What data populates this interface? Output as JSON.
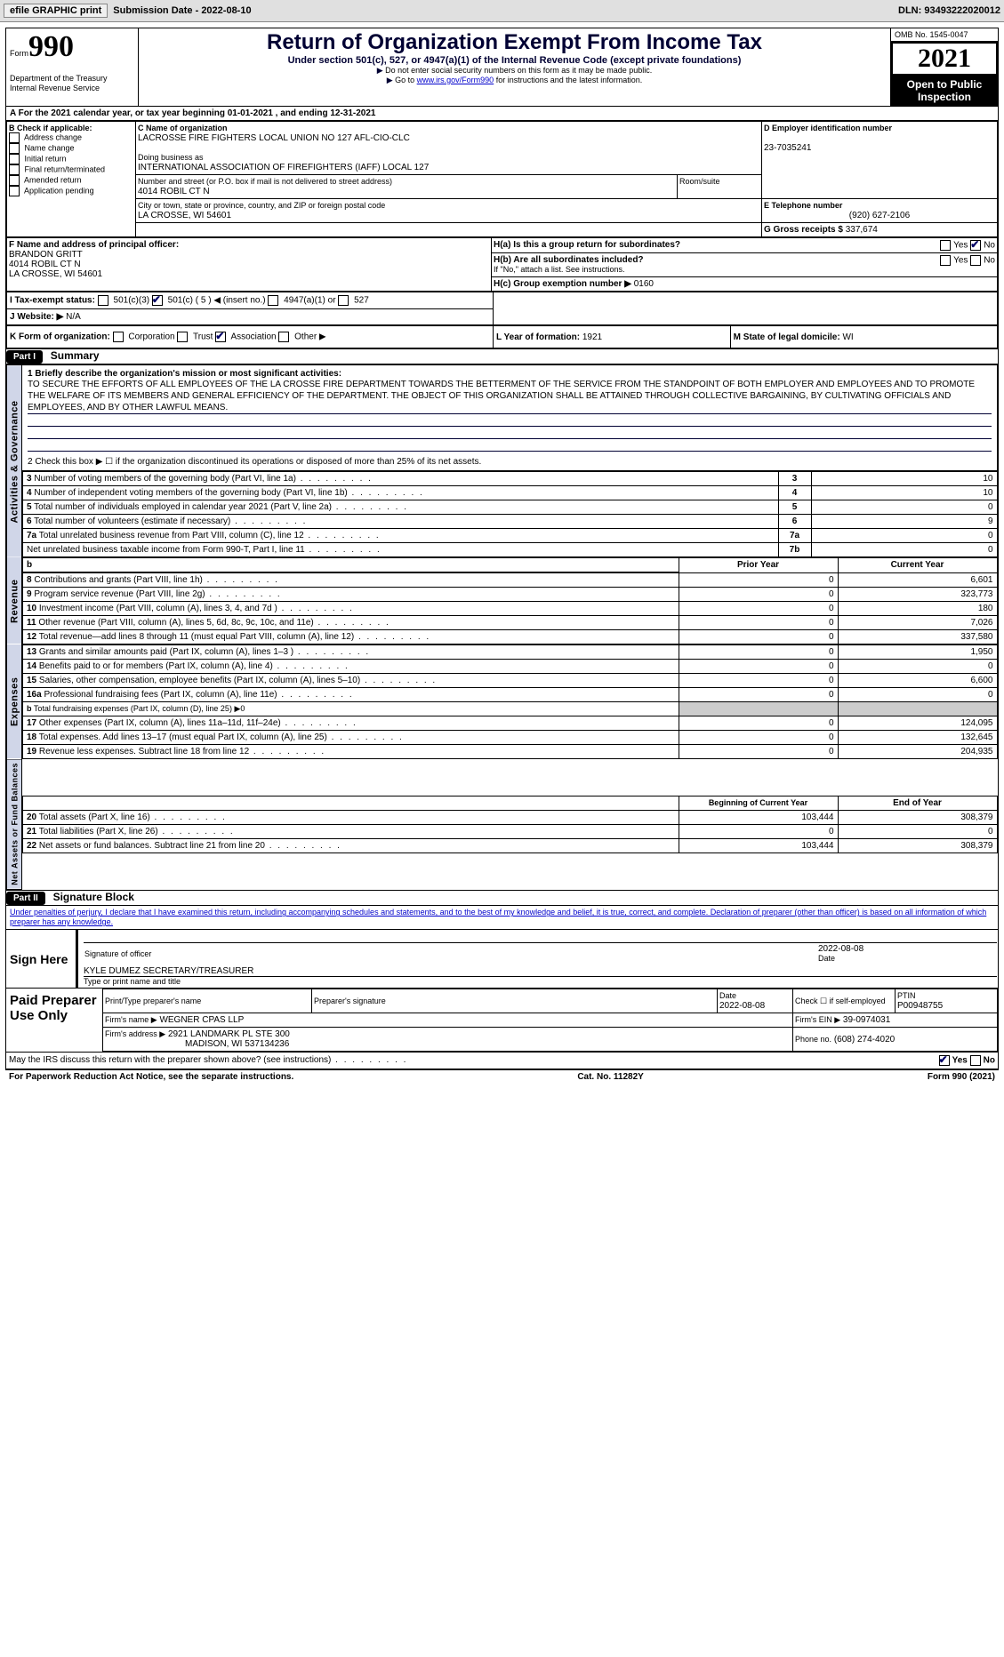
{
  "toolbar": {
    "efile_label": "efile GRAPHIC print",
    "submission_label": "Submission Date - 2022-08-10",
    "dln_label": "DLN: 93493222020012"
  },
  "header": {
    "form_word": "Form",
    "form_number": "990",
    "title": "Return of Organization Exempt From Income Tax",
    "subtitle": "Under section 501(c), 527, or 4947(a)(1) of the Internal Revenue Code (except private foundations)",
    "note1": "Do not enter social security numbers on this form as it may be made public.",
    "note2_pre": "Go to ",
    "note2_link": "www.irs.gov/Form990",
    "note2_post": " for instructions and the latest information.",
    "dept": "Department of the Treasury",
    "irs": "Internal Revenue Service",
    "omb": "OMB No. 1545-0047",
    "year": "2021",
    "open_inspect": "Open to Public Inspection"
  },
  "period": {
    "line": "For the 2021 calendar year, or tax year beginning 01-01-2021   , and ending 12-31-2021"
  },
  "boxB": {
    "title": "B Check if applicable:",
    "items": [
      "Address change",
      "Name change",
      "Initial return",
      "Final return/terminated",
      "Amended return",
      "Application pending"
    ]
  },
  "boxC": {
    "name_label": "C Name of organization",
    "name": "LACROSSE FIRE FIGHTERS LOCAL UNION NO 127 AFL-CIO-CLC",
    "dba_label": "Doing business as",
    "dba": "INTERNATIONAL ASSOCIATION OF FIREFIGHTERS (IAFF) LOCAL 127",
    "street_label": "Number and street (or P.O. box if mail is not delivered to street address)",
    "street": "4014 ROBIL CT N",
    "room_label": "Room/suite",
    "city_label": "City or town, state or province, country, and ZIP or foreign postal code",
    "city": "LA CROSSE, WI  54601"
  },
  "boxD": {
    "label": "D Employer identification number",
    "value": "23-7035241"
  },
  "boxE": {
    "label": "E Telephone number",
    "value": "(920) 627-2106"
  },
  "boxG": {
    "label": "G Gross receipts $",
    "value": "337,674"
  },
  "boxF": {
    "label": "F  Name and address of principal officer:",
    "name": "BRANDON GRITT",
    "street": "4014 ROBIL CT N",
    "city": "LA CROSSE, WI  54601"
  },
  "boxH": {
    "a_label": "H(a)  Is this a group return for subordinates?",
    "b_label": "H(b)  Are all subordinates included?",
    "b_note": "If \"No,\" attach a list. See instructions.",
    "c_label": "H(c)  Group exemption number ▶",
    "c_value": "0160",
    "yes": "Yes",
    "no": "No"
  },
  "boxI": {
    "label": "I   Tax-exempt status:",
    "opts": [
      "501(c)(3)",
      "501(c) ( 5 ) ◀ (insert no.)",
      "4947(a)(1) or",
      "527"
    ]
  },
  "boxJ": {
    "label": "J   Website: ▶",
    "value": "N/A"
  },
  "boxK": {
    "label": "K Form of organization:",
    "opts": [
      "Corporation",
      "Trust",
      "Association",
      "Other ▶"
    ]
  },
  "boxL": {
    "label": "L Year of formation:",
    "value": "1921"
  },
  "boxM": {
    "label": "M State of legal domicile:",
    "value": "WI"
  },
  "partI": {
    "label": "Part I",
    "title": "Summary"
  },
  "mission": {
    "label": "1  Briefly describe the organization's mission or most significant activities:",
    "text": "TO SECURE THE EFFORTS OF ALL EMPLOYEES OF THE LA CROSSE FIRE DEPARTMENT TOWARDS THE BETTERMENT OF THE SERVICE FROM THE STANDPOINT OF BOTH EMPLOYER AND EMPLOYEES AND TO PROMOTE THE WELFARE OF ITS MEMBERS AND GENERAL EFFICIENCY OF THE DEPARTMENT. THE OBJECT OF THIS ORGANIZATION SHALL BE ATTAINED THROUGH COLLECTIVE BARGAINING, BY CULTIVATING OFFICIALS AND EMPLOYEES, AND BY OTHER LAWFUL MEANS."
  },
  "line2": "2   Check this box ▶ ☐  if the organization discontinued its operations or disposed of more than 25% of its net assets.",
  "sections": {
    "ag": "Activities & Governance",
    "rev": "Revenue",
    "exp": "Expenses",
    "net": "Net Assets or Fund Balances"
  },
  "gov_rows": [
    {
      "n": "3",
      "label": "Number of voting members of the governing body (Part VI, line 1a)",
      "idx": "3",
      "val": "10"
    },
    {
      "n": "4",
      "label": "Number of independent voting members of the governing body (Part VI, line 1b)",
      "idx": "4",
      "val": "10"
    },
    {
      "n": "5",
      "label": "Total number of individuals employed in calendar year 2021 (Part V, line 2a)",
      "idx": "5",
      "val": "0"
    },
    {
      "n": "6",
      "label": "Total number of volunteers (estimate if necessary)",
      "idx": "6",
      "val": "9"
    },
    {
      "n": "7a",
      "label": "Total unrelated business revenue from Part VIII, column (C), line 12",
      "idx": "7a",
      "val": "0"
    },
    {
      "n": "",
      "label": "Net unrelated business taxable income from Form 990-T, Part I, line 11",
      "idx": "7b",
      "val": "0"
    }
  ],
  "rev_header": {
    "prior": "Prior Year",
    "curr": "Current Year"
  },
  "rev_rows": [
    {
      "n": "8",
      "label": "Contributions and grants (Part VIII, line 1h)",
      "p": "0",
      "c": "6,601"
    },
    {
      "n": "9",
      "label": "Program service revenue (Part VIII, line 2g)",
      "p": "0",
      "c": "323,773"
    },
    {
      "n": "10",
      "label": "Investment income (Part VIII, column (A), lines 3, 4, and 7d )",
      "p": "0",
      "c": "180"
    },
    {
      "n": "11",
      "label": "Other revenue (Part VIII, column (A), lines 5, 6d, 8c, 9c, 10c, and 11e)",
      "p": "0",
      "c": "7,026"
    },
    {
      "n": "12",
      "label": "Total revenue—add lines 8 through 11 (must equal Part VIII, column (A), line 12)",
      "p": "0",
      "c": "337,580"
    }
  ],
  "exp_rows": [
    {
      "n": "13",
      "label": "Grants and similar amounts paid (Part IX, column (A), lines 1–3 )",
      "p": "0",
      "c": "1,950"
    },
    {
      "n": "14",
      "label": "Benefits paid to or for members (Part IX, column (A), line 4)",
      "p": "0",
      "c": "0"
    },
    {
      "n": "15",
      "label": "Salaries, other compensation, employee benefits (Part IX, column (A), lines 5–10)",
      "p": "0",
      "c": "6,600"
    },
    {
      "n": "16a",
      "label": "Professional fundraising fees (Part IX, column (A), line 11e)",
      "p": "0",
      "c": "0"
    },
    {
      "n": "b",
      "label": "Total fundraising expenses (Part IX, column (D), line 25) ▶0",
      "p": "",
      "c": ""
    },
    {
      "n": "17",
      "label": "Other expenses (Part IX, column (A), lines 11a–11d, 11f–24e)",
      "p": "0",
      "c": "124,095"
    },
    {
      "n": "18",
      "label": "Total expenses. Add lines 13–17 (must equal Part IX, column (A), line 25)",
      "p": "0",
      "c": "132,645"
    },
    {
      "n": "19",
      "label": "Revenue less expenses. Subtract line 18 from line 12",
      "p": "0",
      "c": "204,935"
    }
  ],
  "net_header": {
    "begin": "Beginning of Current Year",
    "end": "End of Year"
  },
  "net_rows": [
    {
      "n": "20",
      "label": "Total assets (Part X, line 16)",
      "p": "103,444",
      "c": "308,379"
    },
    {
      "n": "21",
      "label": "Total liabilities (Part X, line 26)",
      "p": "0",
      "c": "0"
    },
    {
      "n": "22",
      "label": "Net assets or fund balances. Subtract line 21 from line 20",
      "p": "103,444",
      "c": "308,379"
    }
  ],
  "partII": {
    "label": "Part II",
    "title": "Signature Block"
  },
  "sig_decl": "Under penalties of perjury, I declare that I have examined this return, including accompanying schedules and statements, and to the best of my knowledge and belief, it is true, correct, and complete. Declaration of preparer (other than officer) is based on all information of which preparer has any knowledge.",
  "sign_here": {
    "label": "Sign Here",
    "sig_label": "Signature of officer",
    "date": "2022-08-08",
    "date_label": "Date",
    "name": "KYLE DUMEZ  SECRETARY/TREASURER",
    "name_label": "Type or print name and title"
  },
  "preparer": {
    "label": "Paid Preparer Use Only",
    "col1": "Print/Type preparer's name",
    "col2": "Preparer's signature",
    "col3": "Date",
    "date": "2022-08-08",
    "col4_label": "Check ☐ if self-employed",
    "ptin_label": "PTIN",
    "ptin": "P00948755",
    "firm_name_label": "Firm's name   ▶",
    "firm_name": "WEGNER CPAS LLP",
    "ein_label": "Firm's EIN ▶",
    "ein": "39-0974031",
    "addr_label": "Firm's address ▶",
    "addr1": "2921 LANDMARK PL STE 300",
    "addr2": "MADISON, WI  537134236",
    "phone_label": "Phone no.",
    "phone": "(608) 274-4020"
  },
  "discuss": {
    "label": "May the IRS discuss this return with the preparer shown above? (see instructions)",
    "yes": "Yes",
    "no": "No"
  },
  "footer": {
    "left": "For Paperwork Reduction Act Notice, see the separate instructions.",
    "mid": "Cat. No. 11282Y",
    "right": "Form 990 (2021)"
  }
}
